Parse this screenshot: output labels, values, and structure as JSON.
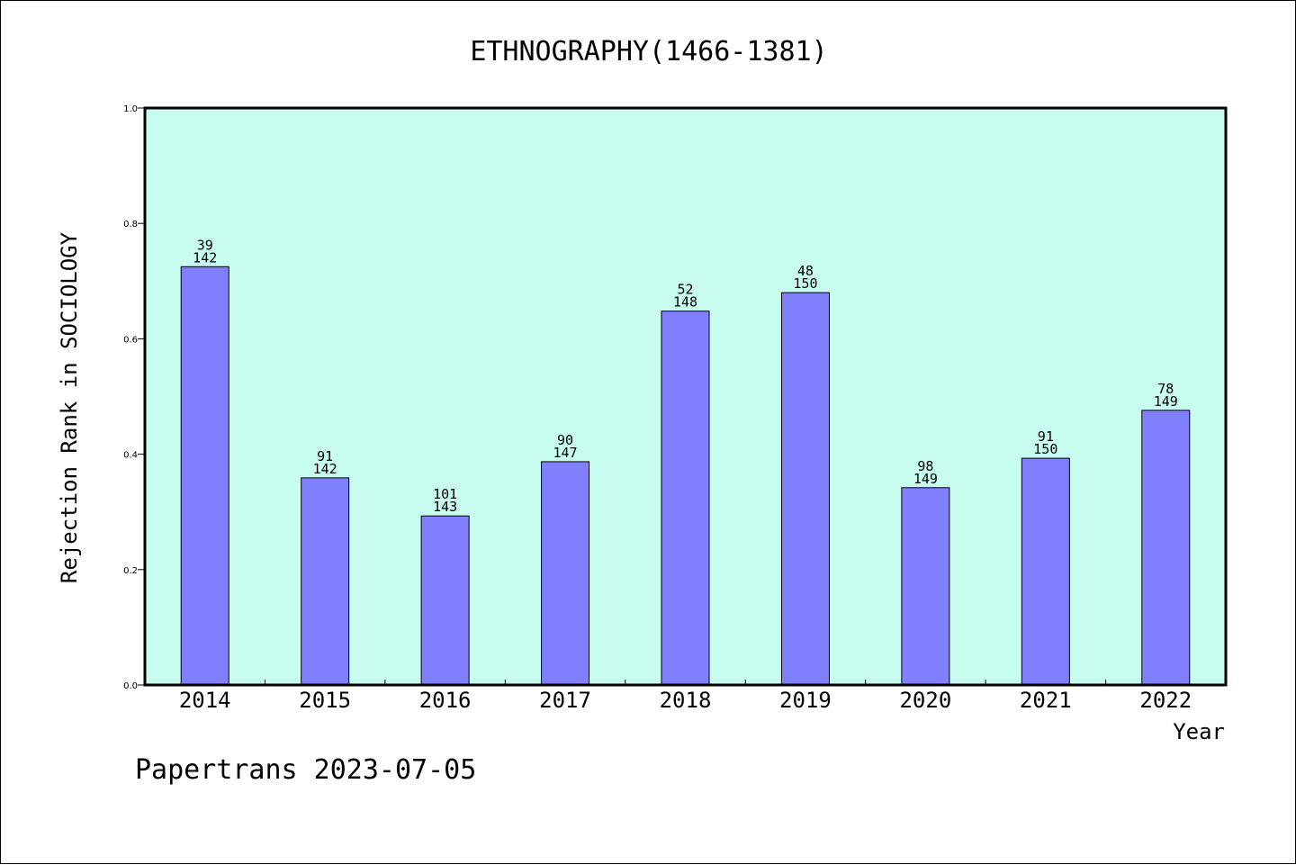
{
  "chart_data": {
    "type": "bar",
    "title": "ETHNOGRAPHY(1466-1381)",
    "xlabel": "Year",
    "ylabel": "Rejection Rank in SOCIOLOGY",
    "categories": [
      "2014",
      "2015",
      "2016",
      "2017",
      "2018",
      "2019",
      "2020",
      "2021",
      "2022"
    ],
    "values": [
      0.725,
      0.359,
      0.293,
      0.387,
      0.648,
      0.68,
      0.342,
      0.393,
      0.476
    ],
    "bar_labels": [
      [
        "39",
        "142"
      ],
      [
        "91",
        "142"
      ],
      [
        "101",
        "143"
      ],
      [
        "90",
        "147"
      ],
      [
        "52",
        "148"
      ],
      [
        "48",
        "150"
      ],
      [
        "98",
        "149"
      ],
      [
        "91",
        "150"
      ],
      [
        "78",
        "149"
      ]
    ],
    "ylim": [
      0,
      1.0
    ],
    "yticks": [
      "0.0",
      "0.2",
      "0.4",
      "0.6",
      "0.8",
      "1.0"
    ],
    "grid": false,
    "colors": {
      "plot_background": "#c8fcee",
      "bar_fill": "#8080ff",
      "bar_stroke": "#000000"
    }
  },
  "footer": {
    "credit": "Papertrans 2023-07-05"
  }
}
